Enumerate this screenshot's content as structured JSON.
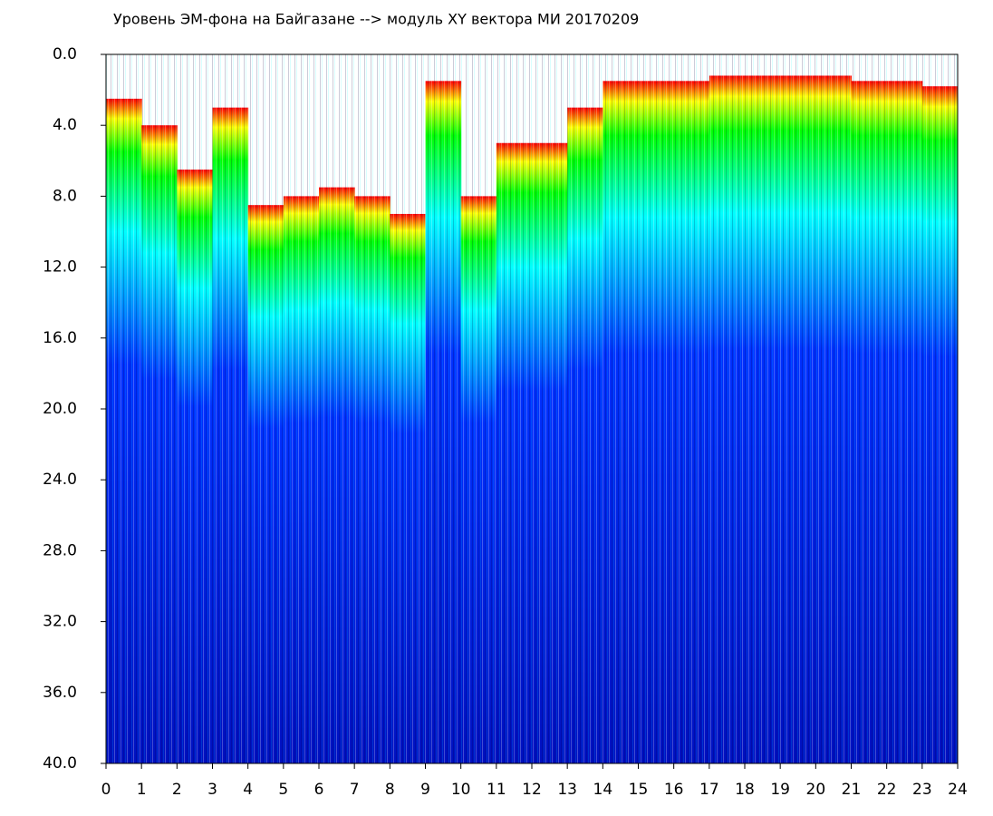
{
  "chart_data": {
    "type": "heatmap",
    "title": "Уровень ЭМ-фона на Байгазане  --> модуль XY вектора МИ  20170209",
    "categories": [
      0,
      1,
      2,
      3,
      4,
      5,
      6,
      7,
      8,
      9,
      10,
      11,
      12,
      13,
      14,
      15,
      16,
      17,
      18,
      19,
      20,
      21,
      22,
      23
    ],
    "values": [
      2.5,
      4,
      6.5,
      3,
      8.5,
      8,
      7.5,
      8,
      9,
      1.5,
      8,
      5,
      5,
      3,
      1.5,
      1.5,
      1.5,
      1.2,
      1.2,
      1.2,
      1.2,
      1.5,
      1.5,
      1.8
    ],
    "colormap": [
      "#ff0000",
      "#ffff00",
      "#00ff00",
      "#00ffff",
      "#0030ff",
      "#0010c0"
    ],
    "xlim": [
      0,
      24
    ],
    "xticks": [
      0,
      1,
      2,
      3,
      4,
      5,
      6,
      7,
      8,
      9,
      10,
      11,
      12,
      13,
      14,
      15,
      16,
      17,
      18,
      19,
      20,
      21,
      22,
      23,
      24
    ],
    "ylim": [
      40,
      0
    ],
    "yticks": [
      {
        "value": 0,
        "label": "0.0"
      },
      {
        "value": 4,
        "label": "4.0"
      },
      {
        "value": 8,
        "label": "8.0"
      },
      {
        "value": 12,
        "label": "12.0"
      },
      {
        "value": 16,
        "label": "16.0"
      },
      {
        "value": 20,
        "label": "20.0"
      },
      {
        "value": 24,
        "label": "24.0"
      },
      {
        "value": 28,
        "label": "28.0"
      },
      {
        "value": 32,
        "label": "32.0"
      },
      {
        "value": 36,
        "label": "36.0"
      },
      {
        "value": 40,
        "label": "40.0"
      }
    ]
  }
}
